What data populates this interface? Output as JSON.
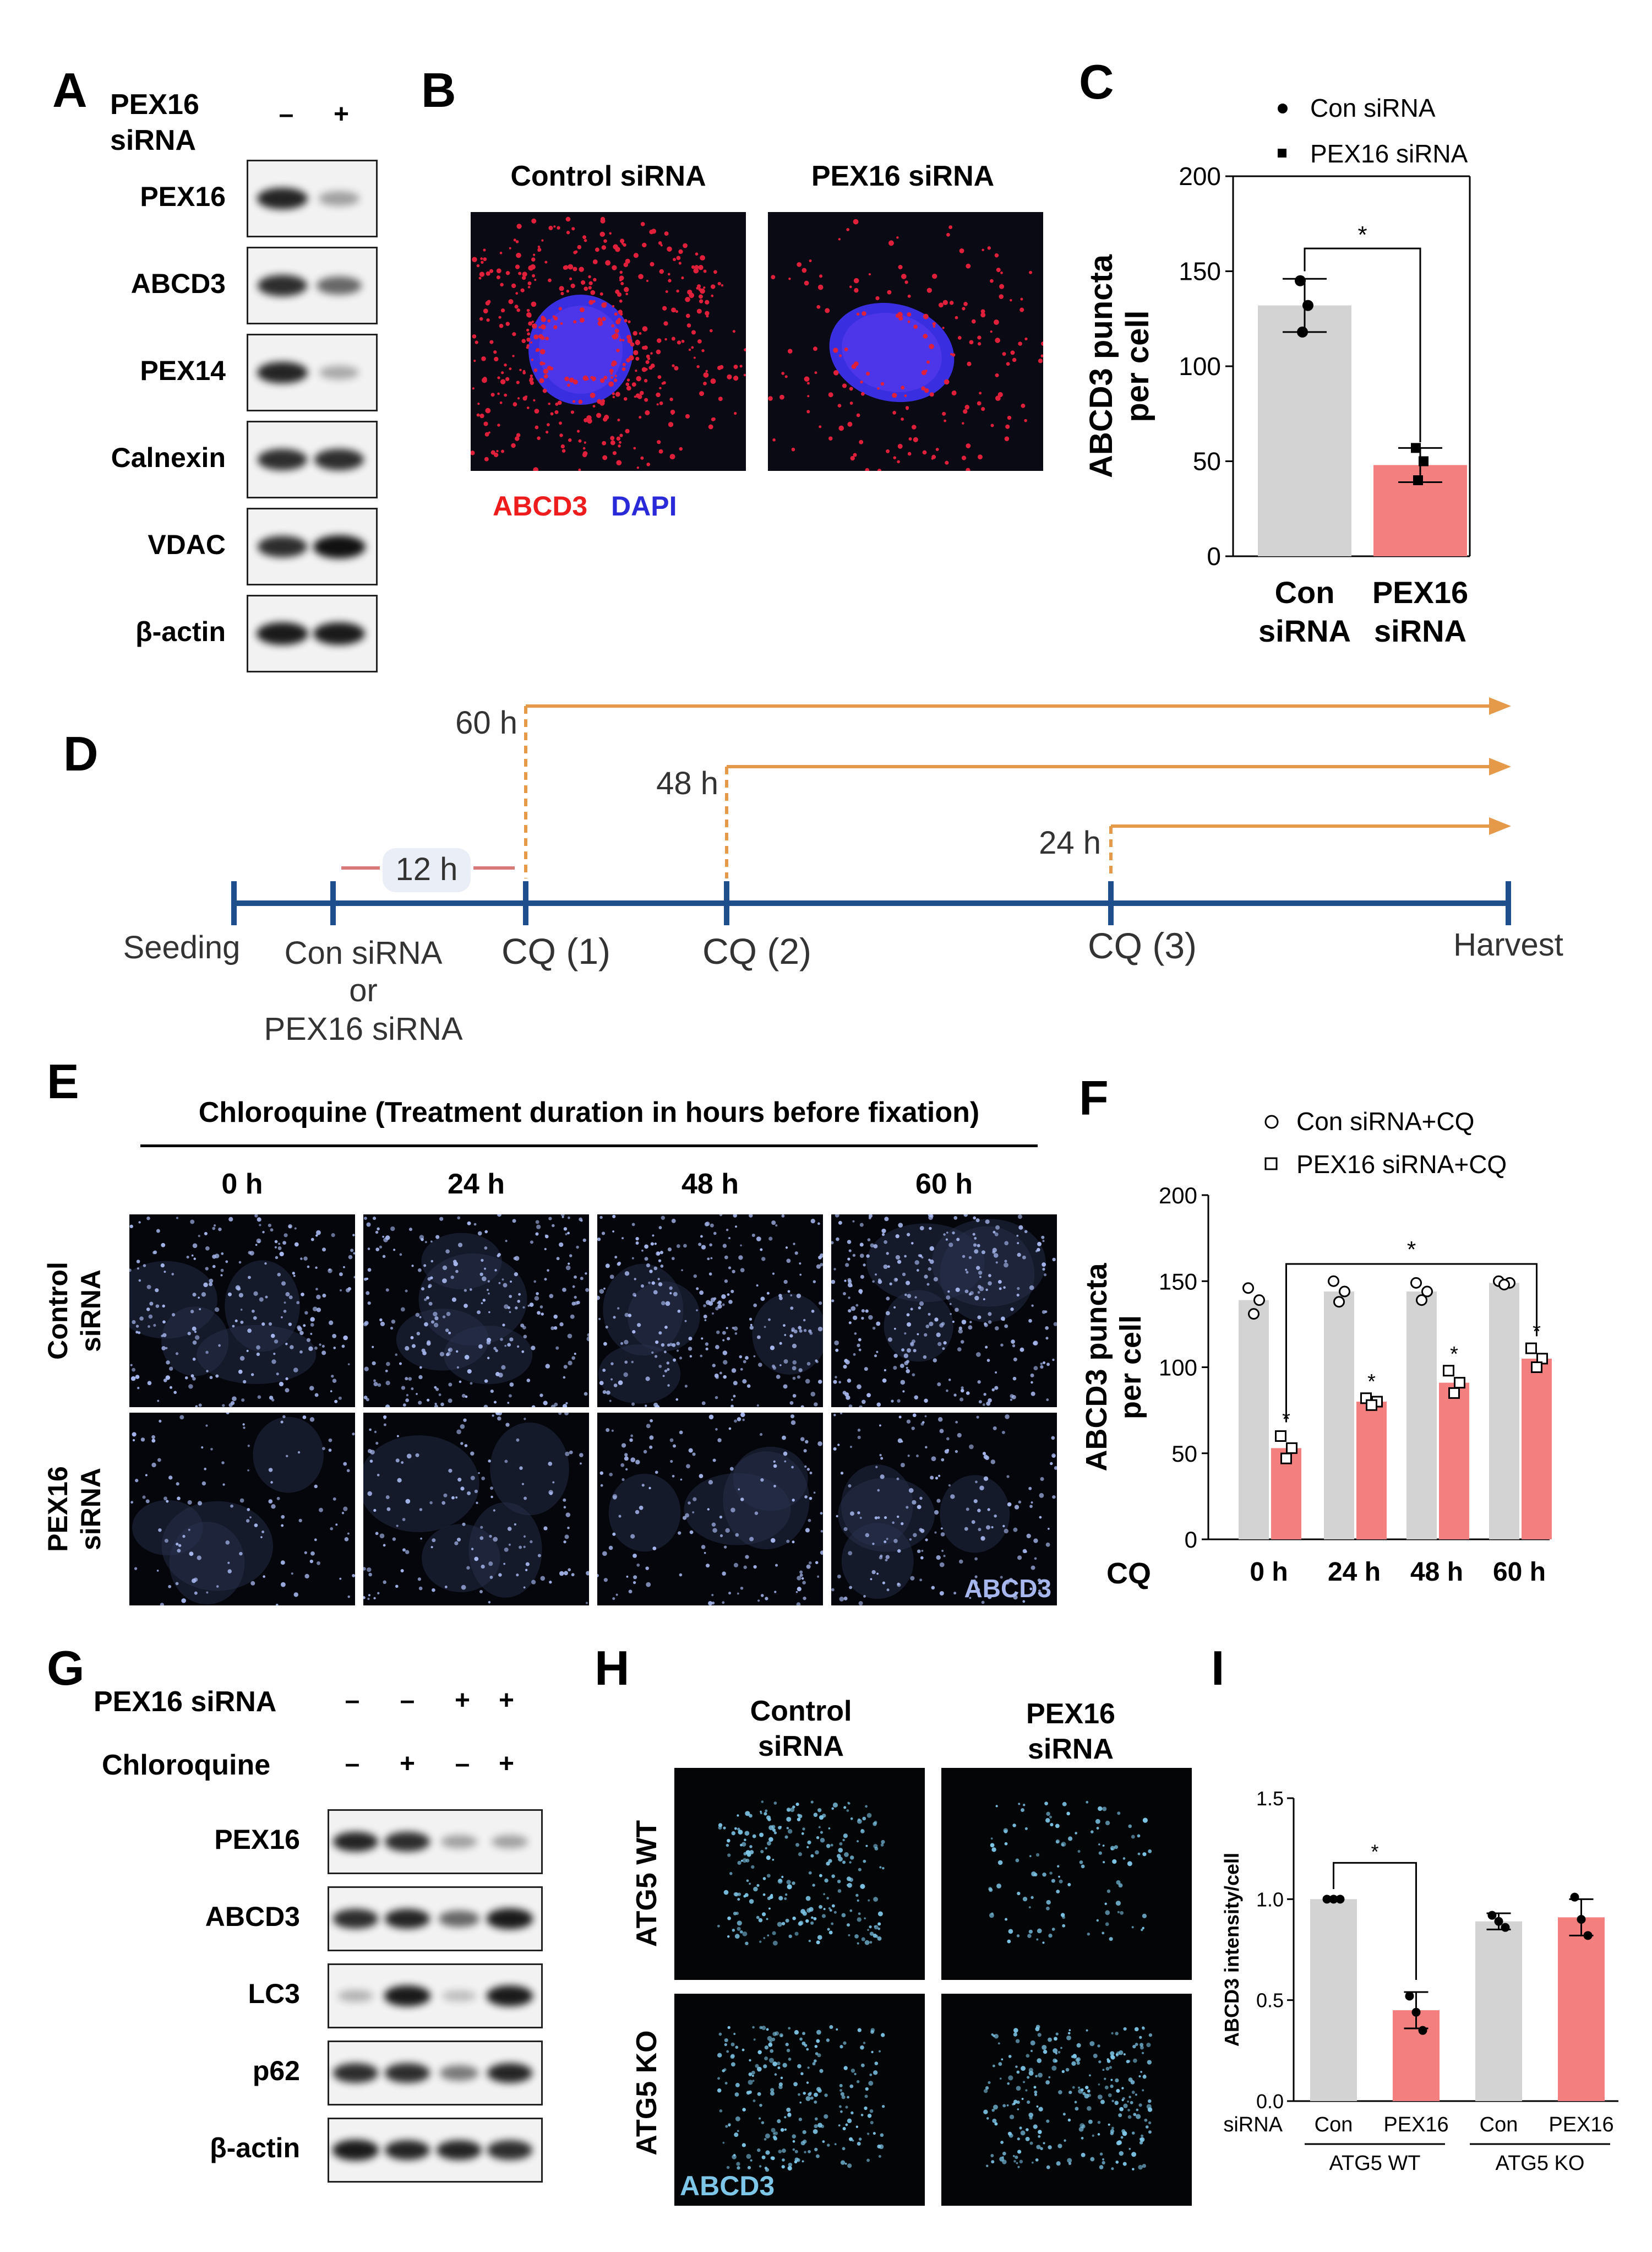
{
  "panels": {
    "A": "A",
    "B": "B",
    "C": "C",
    "D": "D",
    "E": "E",
    "F": "F",
    "G": "G",
    "H": "H",
    "I": "I"
  },
  "panel_a": {
    "header_line1": "PEX16",
    "header_line2": "siRNA",
    "lanes": [
      "–",
      "+"
    ],
    "rows": [
      {
        "label": "PEX16",
        "bands": [
          0.9,
          0.25
        ]
      },
      {
        "label": "ABCD3",
        "bands": [
          0.85,
          0.55
        ]
      },
      {
        "label": "PEX14",
        "bands": [
          0.9,
          0.2
        ]
      },
      {
        "label": "Calnexin",
        "bands": [
          0.85,
          0.85
        ]
      },
      {
        "label": "VDAC",
        "bands": [
          0.85,
          1.0
        ]
      },
      {
        "label": "β-actin",
        "bands": [
          0.95,
          0.95
        ]
      }
    ]
  },
  "panel_b": {
    "titles": [
      "Control siRNA",
      "PEX16 siRNA"
    ],
    "legend_red": "ABCD3",
    "legend_blue": "DAPI",
    "colors": {
      "red": "#ee1c1c",
      "blue": "#2a2ad8"
    }
  },
  "panel_c": {
    "legend": [
      "Con siRNA",
      "PEX16 siRNA"
    ],
    "significance": "*",
    "chart_data": {
      "type": "bar",
      "categories": [
        "Con siRNA",
        "PEX16 siRNA"
      ],
      "category_lines": [
        [
          "Con",
          "siRNA"
        ],
        [
          "PEX16",
          "siRNA"
        ]
      ],
      "values": [
        132,
        48
      ],
      "errors": [
        14,
        9
      ],
      "points": [
        [
          145,
          132,
          118
        ],
        [
          57,
          50,
          40
        ]
      ],
      "ylabel_lines": [
        "ABCD3 puncta",
        "per cell"
      ],
      "ylim": [
        0,
        200
      ],
      "yticks": [
        0,
        50,
        100,
        150,
        200
      ],
      "colors": [
        "#d3d3d3",
        "#f47f7f"
      ]
    }
  },
  "panel_d": {
    "points": [
      "Seeding",
      "Con siRNA",
      "or",
      "PEX16 siRNA",
      "CQ (1)",
      "CQ (2)",
      "CQ (3)",
      "Harvest"
    ],
    "interval": "12 h",
    "durations": [
      "60 h",
      "48 h",
      "24 h"
    ],
    "colors": {
      "timeline": "#1f4e8c",
      "arrow": "#e59a4a",
      "interval": "#d97a7a"
    }
  },
  "panel_e": {
    "title": "Chloroquine (Treatment duration in hours before fixation)",
    "columns": [
      "0 h",
      "24 h",
      "48 h",
      "60 h"
    ],
    "rows": [
      [
        "Control",
        "siRNA"
      ],
      [
        "PEX16",
        "siRNA"
      ]
    ],
    "stain": "ABCD3",
    "stain_color": "#a7b7ee"
  },
  "panel_f": {
    "legend": [
      "Con siRNA+CQ",
      "PEX16 siRNA+CQ"
    ],
    "xlabel": "CQ",
    "significance": "*",
    "chart_data": {
      "type": "bar",
      "categories": [
        "0 h",
        "24 h",
        "48 h",
        "60 h"
      ],
      "series": [
        {
          "name": "Con siRNA+CQ",
          "values": [
            139,
            144,
            144,
            149
          ],
          "points": [
            [
              146,
              139,
              131
            ],
            [
              150,
              144,
              138
            ],
            [
              149,
              144,
              139
            ],
            [
              150,
              149,
              148
            ]
          ]
        },
        {
          "name": "PEX16 siRNA+CQ",
          "values": [
            53,
            80,
            91,
            105
          ],
          "points": [
            [
              60,
              53,
              47
            ],
            [
              82,
              80,
              78
            ],
            [
              98,
              91,
              85
            ],
            [
              111,
              105,
              100
            ]
          ]
        }
      ],
      "ylabel_lines": [
        "ABCD3 puncta",
        "per cell"
      ],
      "ylim": [
        0,
        200
      ],
      "yticks": [
        0,
        50,
        100,
        150,
        200
      ],
      "colors": [
        "#d3d3d3",
        "#f47f7f"
      ]
    }
  },
  "panel_g": {
    "row_headers": [
      "PEX16 siRNA",
      "Chloroquine"
    ],
    "signs": [
      [
        "–",
        "–",
        "+",
        "+"
      ],
      [
        "–",
        "+",
        "–",
        "+"
      ]
    ],
    "rows": [
      {
        "label": "PEX16",
        "bands": [
          0.9,
          0.85,
          0.25,
          0.25
        ]
      },
      {
        "label": "ABCD3",
        "bands": [
          0.85,
          0.9,
          0.55,
          0.95
        ]
      },
      {
        "label": "LC3",
        "bands": [
          0.15,
          0.95,
          0.1,
          0.95
        ]
      },
      {
        "label": "p62",
        "bands": [
          0.85,
          0.85,
          0.45,
          0.9
        ]
      },
      {
        "label": "β-actin",
        "bands": [
          0.95,
          0.9,
          0.9,
          0.85
        ]
      }
    ]
  },
  "panel_h": {
    "columns": [
      [
        "Control",
        "siRNA"
      ],
      [
        "PEX16",
        "siRNA"
      ]
    ],
    "rows": [
      "ATG5 WT",
      "ATG5 KO"
    ],
    "stain": "ABCD3",
    "stain_color": "#7ec6e8"
  },
  "panel_i": {
    "x_prefix": "siRNA",
    "tick_labels": [
      "Con",
      "PEX16",
      "Con",
      "PEX16"
    ],
    "groups": [
      "ATG5 WT",
      "ATG5 KO"
    ],
    "significance": "*",
    "chart_data": {
      "type": "bar",
      "categories": [
        "Con",
        "PEX16",
        "Con",
        "PEX16"
      ],
      "values": [
        1.0,
        0.45,
        0.89,
        0.91
      ],
      "errors": [
        0,
        0.09,
        0.04,
        0.09
      ],
      "points": [
        [
          1.0,
          1.0,
          1.0
        ],
        [
          0.52,
          0.44,
          0.35
        ],
        [
          0.92,
          0.89,
          0.86
        ],
        [
          1.01,
          0.9,
          0.82
        ]
      ],
      "ylabel": "ABCD3 intensity/cell",
      "ylim": [
        0,
        1.5
      ],
      "yticks": [
        "0.0",
        "0.5",
        "1.0",
        "1.5"
      ],
      "colors": [
        "#d3d3d3",
        "#f47f7f",
        "#d3d3d3",
        "#f47f7f"
      ]
    }
  }
}
